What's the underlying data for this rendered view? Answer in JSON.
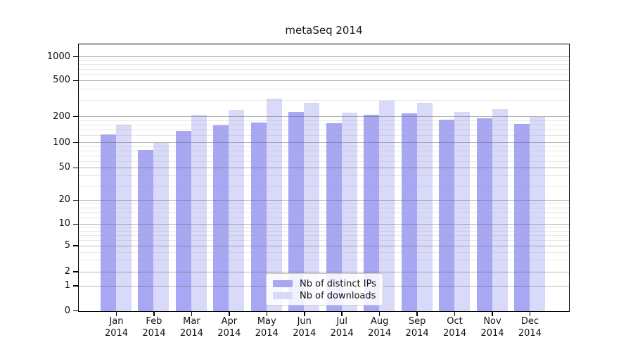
{
  "chart_data": {
    "type": "bar",
    "title": "metaSeq 2014",
    "categories": [
      "Jan",
      "Feb",
      "Mar",
      "Apr",
      "May",
      "Jun",
      "Jul",
      "Aug",
      "Sep",
      "Oct",
      "Nov",
      "Dec"
    ],
    "category_year": "2014",
    "series": [
      {
        "name": "Nb of distinct IPs",
        "color": "#a7a7f3",
        "values": [
          125,
          83,
          139,
          161,
          173,
          228,
          169,
          210,
          220,
          186,
          194,
          167
        ]
      },
      {
        "name": "Nb of downloads",
        "color": "#d9d9f9",
        "values": [
          164,
          101,
          210,
          238,
          322,
          285,
          222,
          302,
          287,
          227,
          246,
          200
        ]
      }
    ],
    "y_ticks": [
      "0",
      "1",
      "2",
      "5",
      "10",
      "20",
      "50",
      "100",
      "200",
      "500",
      "1000"
    ],
    "y_scale": "log-like (pseudo-log, 0 at baseline)",
    "ylim": [
      0,
      1400
    ],
    "grid": "on",
    "legend_position": "inside-bottom-center",
    "colors": {
      "axis": "#000000",
      "major_grid": "#b6b6b6",
      "minor_grid": "#e7e7e7",
      "background": "#ffffff"
    }
  }
}
